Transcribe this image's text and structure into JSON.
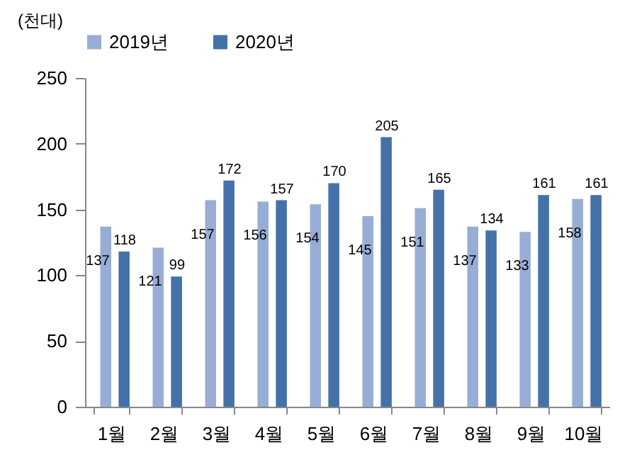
{
  "chart_data": {
    "type": "bar",
    "ylabel": "(천대)",
    "categories": [
      "1월",
      "2월",
      "3월",
      "4월",
      "5월",
      "6월",
      "7월",
      "8월",
      "9월",
      "10월"
    ],
    "series": [
      {
        "name": "2019년",
        "color": "#98add6",
        "values": [
          137,
          121,
          157,
          156,
          154,
          145,
          151,
          137,
          133,
          158
        ]
      },
      {
        "name": "2020년",
        "color": "#4472a8",
        "values": [
          118,
          99,
          172,
          157,
          170,
          205,
          165,
          134,
          161,
          161
        ]
      }
    ],
    "ylim": [
      0,
      250
    ],
    "yticks": [
      0,
      50,
      100,
      150,
      200,
      250
    ],
    "data_labels": true,
    "legend": "top",
    "grid": false
  }
}
